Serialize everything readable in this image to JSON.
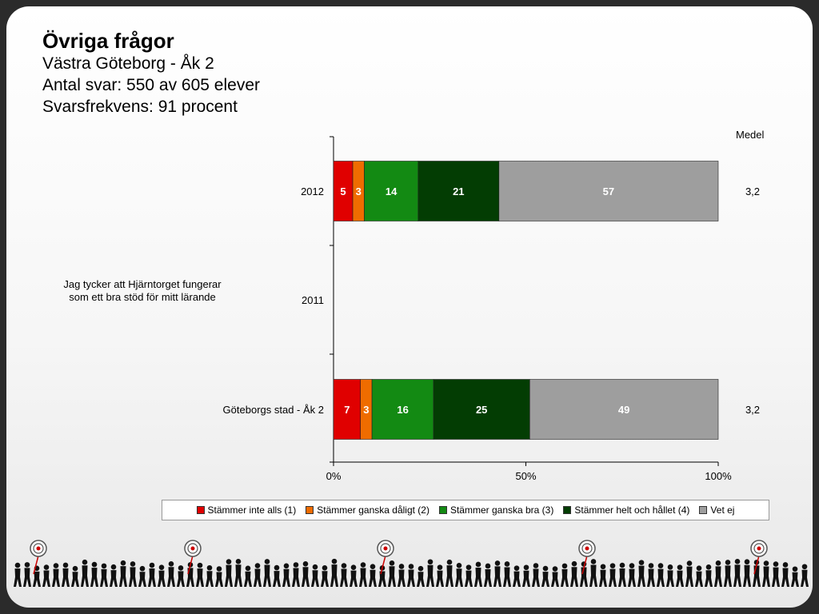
{
  "header": {
    "title": "Övriga frågor",
    "line2": "Västra Göteborg - Åk 2",
    "line3": "Antal svar: 550 av 605 elever",
    "line4": "Svarsfrekvens: 91 procent"
  },
  "medel_header": "Medel",
  "question": "Jag tycker att Hjärntorget fungerar som ett bra stöd för mitt lärande",
  "chart_data": {
    "type": "bar",
    "orientation": "horizontal",
    "stacked": true,
    "categories": [
      "2012",
      "2011",
      "Göteborgs stad - Åk 2"
    ],
    "series": [
      {
        "name": "Stämmer inte alls (1)",
        "color": "#e00000",
        "values": [
          5,
          null,
          7
        ]
      },
      {
        "name": "Stämmer ganska dåligt (2)",
        "color": "#ef6c00",
        "values": [
          3,
          null,
          3
        ]
      },
      {
        "name": "Stämmer ganska bra (3)",
        "color": "#138a13",
        "values": [
          14,
          null,
          16
        ]
      },
      {
        "name": "Stämmer helt och hållet (4)",
        "color": "#033d03",
        "values": [
          21,
          null,
          25
        ]
      },
      {
        "name": "Vet ej",
        "color": "#9e9e9e",
        "values": [
          57,
          null,
          49
        ]
      }
    ],
    "medel": [
      "3,2",
      "",
      "3,2"
    ],
    "xticks": [
      "0%",
      "50%",
      "100%"
    ],
    "xlim": [
      0,
      100
    ],
    "legend_position": "bottom"
  }
}
